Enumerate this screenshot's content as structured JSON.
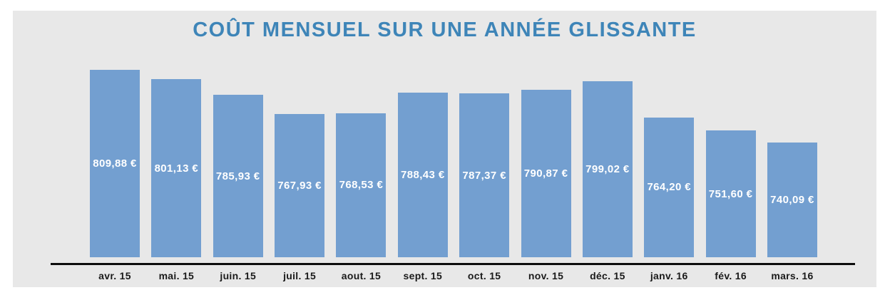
{
  "title": "COÛT MENSUEL SUR UNE ANNÉE GLISSANTE",
  "colors": {
    "bar": "#739fd0",
    "panel_background": "#e8e8e8",
    "title": "#3e85b8",
    "value_label": "#ffffff",
    "month_label": "#1a1a1a",
    "axis_line": "#0d0d0d"
  },
  "chart_data": {
    "type": "bar",
    "title": "COÛT MENSUEL SUR UNE ANNÉE GLISSANTE",
    "categories": [
      "avr. 15",
      "mai. 15",
      "juin. 15",
      "juil. 15",
      "aout. 15",
      "sept. 15",
      "oct. 15",
      "nov. 15",
      "déc. 15",
      "janv. 16",
      "fév. 16",
      "mars. 16"
    ],
    "values": [
      809.88,
      801.13,
      785.93,
      767.93,
      768.53,
      788.43,
      787.37,
      790.87,
      799.02,
      764.2,
      751.6,
      740.09
    ],
    "value_labels": [
      "809,88 €",
      "801,13 €",
      "785,93 €",
      "767,93 €",
      "768,53 €",
      "788,43 €",
      "787,37 €",
      "790,87 €",
      "799,02 €",
      "764,20 €",
      "751,60 €",
      "740,09 €"
    ],
    "xlabel": "",
    "ylabel": "",
    "ylim": [
      630,
      810
    ],
    "grid": false,
    "legend": false,
    "value_labels_position": "inside-center",
    "currency": "EUR"
  }
}
